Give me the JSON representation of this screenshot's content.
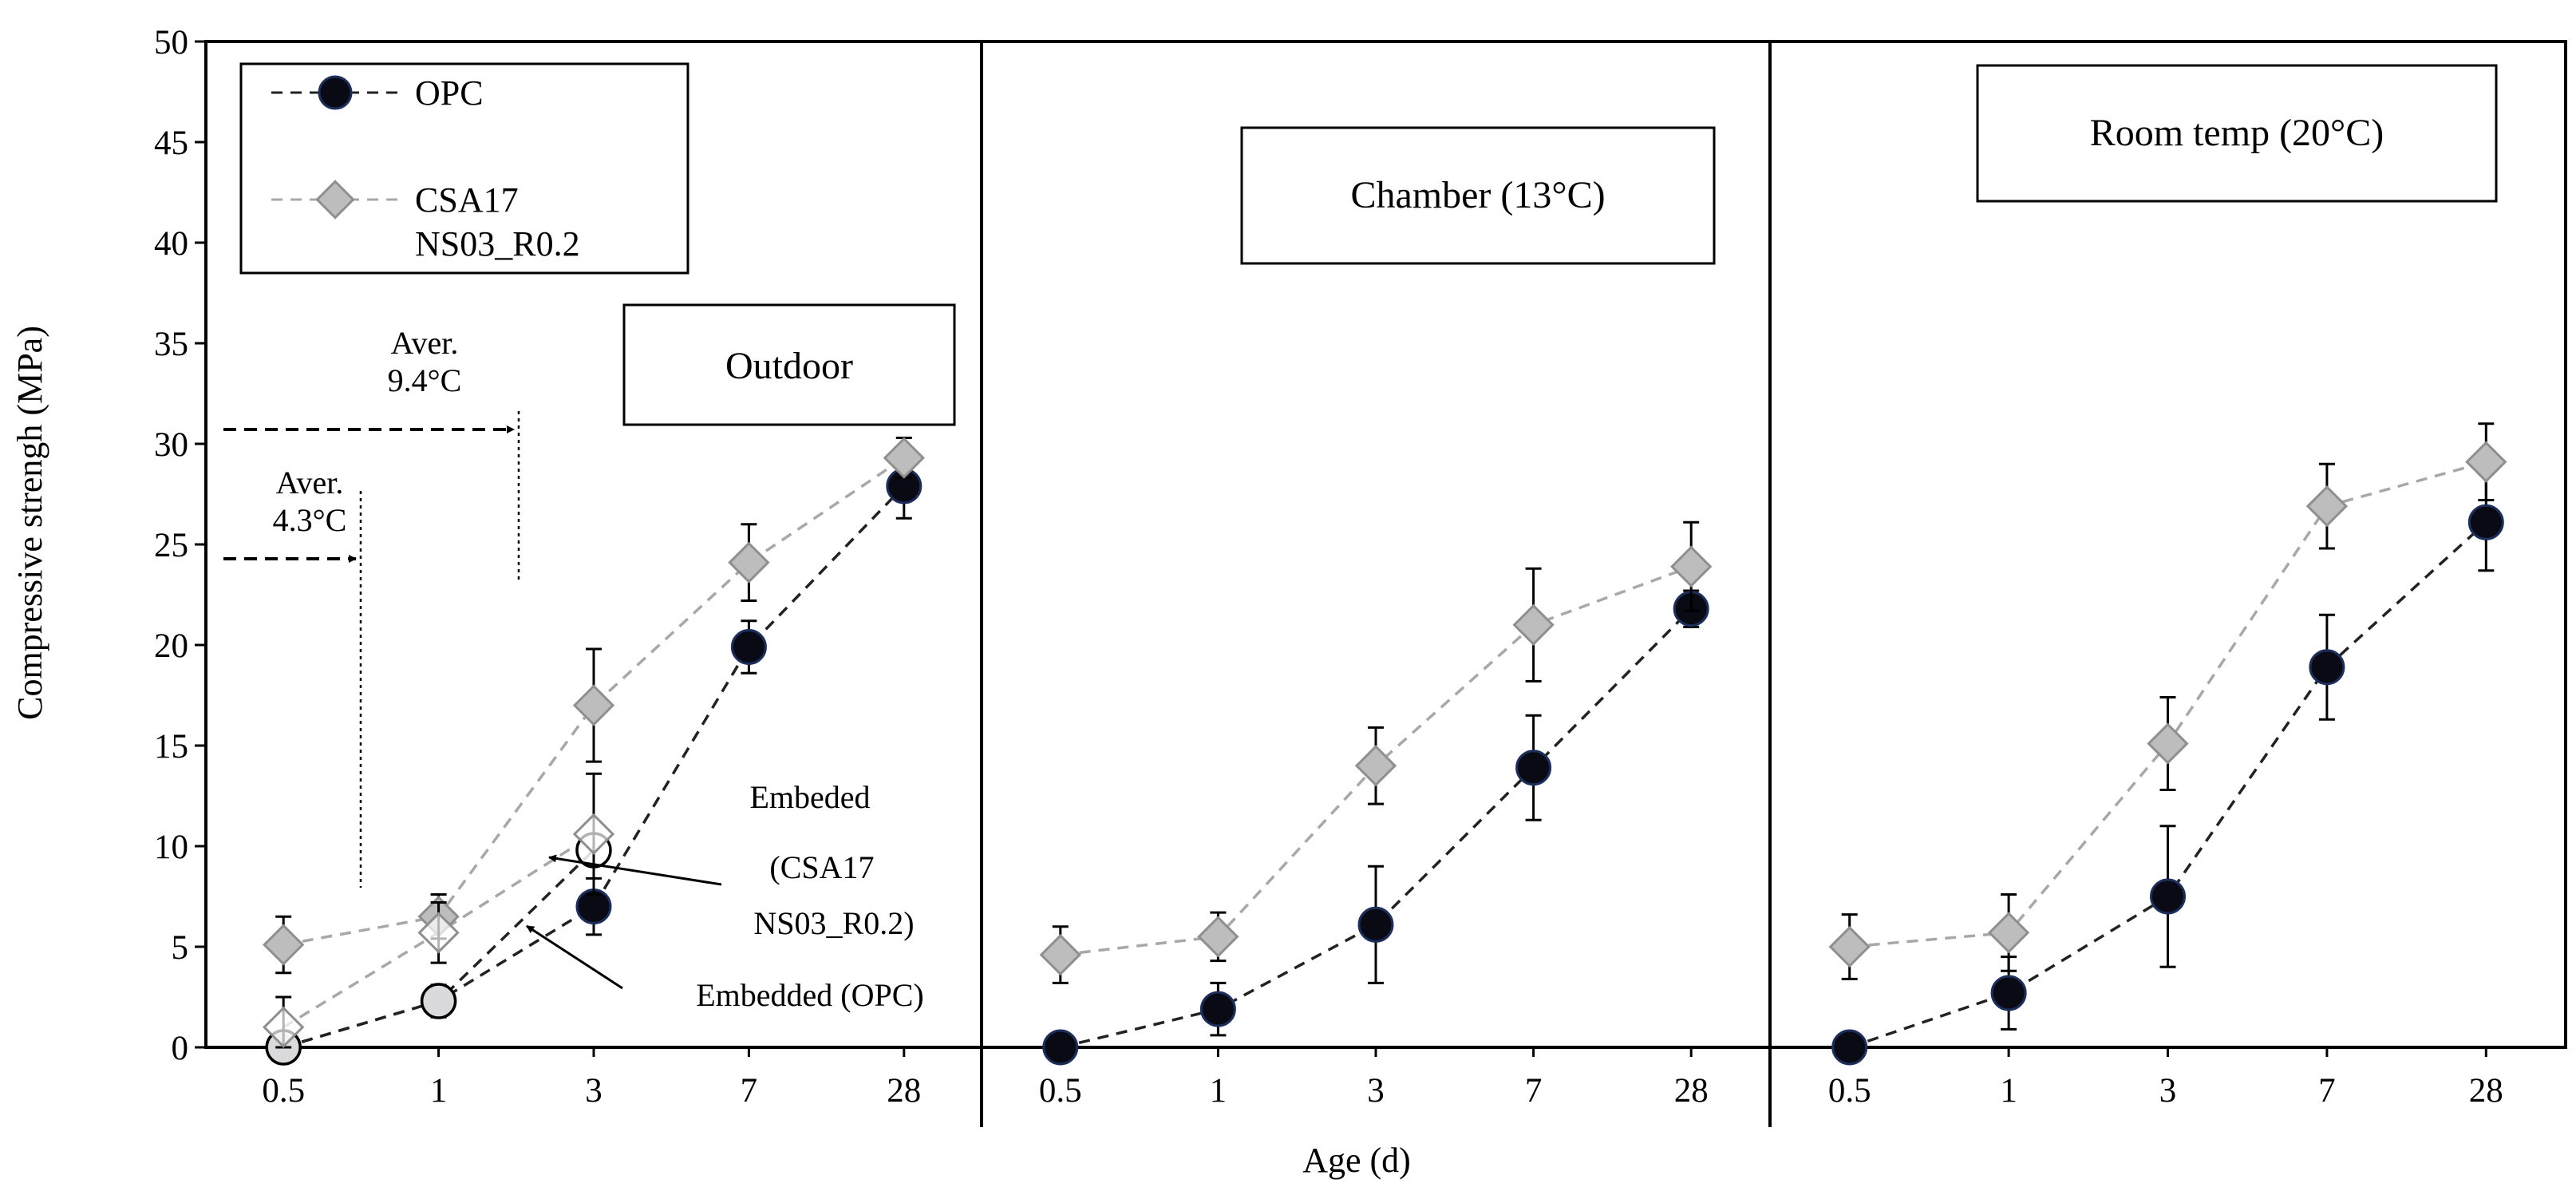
{
  "chart_data": {
    "type": "line",
    "ylabel": "Compressive strengh (MPa)",
    "xlabel": "Age (d)",
    "ylim": [
      0,
      50
    ],
    "yticks": [
      0,
      5,
      10,
      15,
      20,
      25,
      30,
      35,
      40,
      45,
      50
    ],
    "categories": [
      "0.5",
      "1",
      "3",
      "7",
      "28"
    ],
    "legend": {
      "position": "top-left",
      "entries": [
        {
          "name": "OPC",
          "lines": [
            "OPC"
          ]
        },
        {
          "name": "CSA17 NS03_R0.2",
          "lines": [
            "CSA17",
            "NS03_R0.2"
          ]
        }
      ]
    },
    "panels": [
      {
        "name": "Outdoor",
        "label": "Outdoor",
        "series": [
          {
            "name": "OPC",
            "values": [
              0.0,
              2.3,
              7.0,
              19.9,
              27.9
            ],
            "errors": [
              0.3,
              0.8,
              1.4,
              1.3,
              1.6
            ]
          },
          {
            "name": "CSA17 NS03_R0.2",
            "values": [
              5.1,
              6.5,
              17.0,
              24.1,
              29.3
            ],
            "errors": [
              1.4,
              1.1,
              2.8,
              1.9,
              1.0
            ]
          },
          {
            "name": "Embedded (OPC)",
            "values": [
              0.0,
              2.3,
              9.8
            ],
            "errors": [
              0.0,
              0.0,
              0.0
            ]
          },
          {
            "name": "Embeded (CSA17 NS03_R0.2)",
            "values": [
              1.0,
              5.7,
              10.6
            ],
            "errors": [
              1.5,
              1.5,
              3.0
            ]
          }
        ],
        "annotations": {
          "aver1_line1": "Aver.",
          "aver1_line2": "4.3°C",
          "aver2_line1": "Aver.",
          "aver2_line2": "9.4°C",
          "embeded_csa_line1": "Embeded",
          "embeded_csa_line2": "(CSA17",
          "embeded_csa_line3": "NS03_R0.2)",
          "embedded_opc": "Embedded (OPC)"
        }
      },
      {
        "name": "Chamber",
        "label": "Chamber (13°C)",
        "series": [
          {
            "name": "OPC",
            "values": [
              0.0,
              1.9,
              6.1,
              13.9,
              21.8
            ],
            "errors": [
              0.0,
              1.3,
              2.9,
              2.6,
              0.9
            ]
          },
          {
            "name": "CSA17 NS03_R0.2",
            "values": [
              4.6,
              5.5,
              14.0,
              21.0,
              23.9
            ],
            "errors": [
              1.4,
              1.2,
              1.9,
              2.8,
              2.2
            ]
          }
        ]
      },
      {
        "name": "Room temp",
        "label": "Room temp (20°C)",
        "series": [
          {
            "name": "OPC",
            "values": [
              0.0,
              2.7,
              7.5,
              18.9,
              26.1
            ],
            "errors": [
              0.0,
              1.8,
              3.5,
              2.6,
              2.4
            ]
          },
          {
            "name": "CSA17 NS03_R0.2",
            "values": [
              5.0,
              5.7,
              15.1,
              26.9,
              29.1
            ],
            "errors": [
              1.6,
              1.9,
              2.3,
              2.1,
              1.9
            ]
          }
        ]
      }
    ]
  }
}
